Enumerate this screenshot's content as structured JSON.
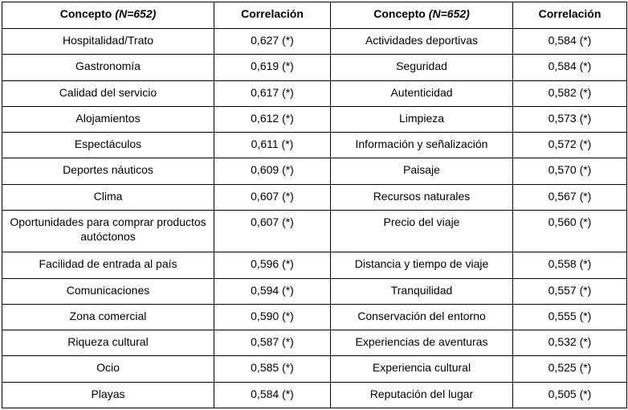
{
  "colors": {
    "border": "#000000",
    "text": "#000000",
    "background": "#ffffff"
  },
  "table": {
    "header": {
      "concept_label": "Concepto",
      "concept_n": "(N=652)",
      "correlation_label": "Correlación"
    },
    "rows": [
      {
        "left_concept": "Hospitalidad/Trato",
        "left_value": "0,627 (*)",
        "right_concept": "Actividades deportivas",
        "right_value": "0,584 (*)"
      },
      {
        "left_concept": "Gastronomía",
        "left_value": "0,619 (*)",
        "right_concept": "Seguridad",
        "right_value": "0,584 (*)"
      },
      {
        "left_concept": "Calidad del servicio",
        "left_value": "0,617 (*)",
        "right_concept": "Autenticidad",
        "right_value": "0,582 (*)"
      },
      {
        "left_concept": "Alojamientos",
        "left_value": "0,612 (*)",
        "right_concept": "Limpieza",
        "right_value": "0,573 (*)"
      },
      {
        "left_concept": "Espectáculos",
        "left_value": "0,611 (*)",
        "right_concept": "Información y señalización",
        "right_value": "0,572 (*)"
      },
      {
        "left_concept": "Deportes náuticos",
        "left_value": "0,609 (*)",
        "right_concept": "Paisaje",
        "right_value": "0,570 (*)"
      },
      {
        "left_concept": "Clima",
        "left_value": "0,607 (*)",
        "right_concept": "Recursos naturales",
        "right_value": "0,567 (*)"
      },
      {
        "left_concept": "Oportunidades para comprar productos autóctonos",
        "left_value": "0,607 (*)",
        "right_concept": "Precio del viaje",
        "right_value": "0,560 (*)"
      },
      {
        "left_concept": "Facilidad de entrada al país",
        "left_value": "0,596 (*)",
        "right_concept": "Distancia y tiempo de viaje",
        "right_value": "0,558 (*)"
      },
      {
        "left_concept": "Comunicaciones",
        "left_value": "0,594 (*)",
        "right_concept": "Tranquilidad",
        "right_value": "0,557 (*)"
      },
      {
        "left_concept": "Zona comercial",
        "left_value": "0,590 (*)",
        "right_concept": "Conservación del entorno",
        "right_value": "0,555 (*)"
      },
      {
        "left_concept": "Riqueza cultural",
        "left_value": "0,587 (*)",
        "right_concept": "Experiencias de aventuras",
        "right_value": "0,532 (*)"
      },
      {
        "left_concept": "Ocio",
        "left_value": "0,585 (*)",
        "right_concept": "Experiencia cultural",
        "right_value": "0,525 (*)"
      },
      {
        "left_concept": "Playas",
        "left_value": "0,584 (*)",
        "right_concept": "Reputación del lugar",
        "right_value": "0,505 (*)"
      }
    ]
  }
}
